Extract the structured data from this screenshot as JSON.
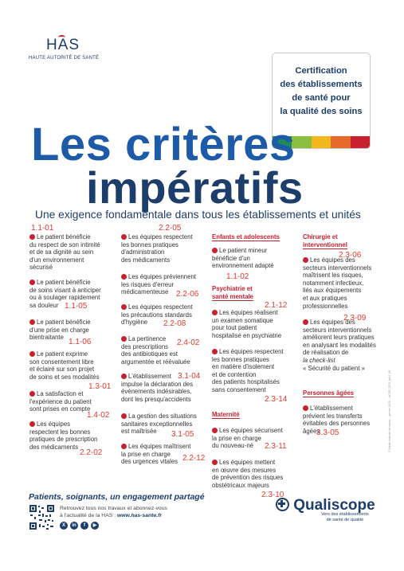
{
  "logo": {
    "name": "HAS",
    "subtitle": "HAUTE AUTORITÉ DE SANTÉ"
  },
  "certification": {
    "lines": [
      "Certification",
      "des établissements",
      "de santé pour",
      "la qualité des soins"
    ],
    "bar_colors": [
      "#1f8a5c",
      "#8bbf3f",
      "#f2b81c",
      "#e86a2a",
      "#c8202f"
    ]
  },
  "title": {
    "line1": "Les critères",
    "line2": "impératifs"
  },
  "subtitle": "Une exigence fondamentale dans tous les établissements et unités",
  "codes": {
    "c1": "1.1-01",
    "c2": "2.2-05",
    "c3": "1.1-02",
    "c4": "2.3-06",
    "c5": "2.2-06",
    "c6": "1.1-05",
    "c7": "2.1-12",
    "c8": "2.2-08",
    "c9": "1.1-06",
    "c10": "2.4-02",
    "c11": "2.3-09",
    "c12": "1.3-01",
    "c13": "3.1-04",
    "c14": "1.4-02",
    "c15": "2.3-14",
    "c16": "3.1-05",
    "c17": "2.2-02",
    "c18": "2.2-12",
    "c19": "3.3-05",
    "c20": "2.3-11",
    "c21": "2.3-10"
  },
  "col1": [
    [
      "Le patient bénéficie",
      "du respect de son intimité",
      "et de sa dignité au sein",
      "d'un environnement",
      "sécurisé"
    ],
    [
      "Le patient bénéficie",
      "de soins visant à anticiper",
      "ou à soulager rapidement",
      "sa douleur"
    ],
    [
      "Le patient bénéficie",
      "d'une prise en charge",
      "bientraitante"
    ],
    [
      "Le patient exprime",
      "son consentement libre",
      "et éclairé sur son projet",
      "de soins et ses modalités"
    ],
    [
      "La satisfaction et",
      "l'expérience du patient",
      "sont prises en compte"
    ],
    [
      "Les équipes",
      "respectent les bonnes",
      "pratiques de prescription",
      "des médicaments"
    ]
  ],
  "col2": [
    [
      "Les équipes respectent",
      "les bonnes pratiques",
      "d'administration",
      "des médicaments"
    ],
    [
      "Les équipes préviennent",
      "les risques d'erreur",
      "médicamenteuse"
    ],
    [
      "Les équipes respectent",
      "les précautions standards",
      "d'hygiène"
    ],
    [
      "La pertinence",
      "des prescriptions",
      "des antibiotiques est",
      "argumentée et réévaluée"
    ],
    [
      "L'établissement",
      "impulse la déclaration des",
      "événements indésirables,",
      "dont les presqu'accidents"
    ],
    [
      "La gestion des situations",
      "sanitaires exceptionnelles",
      "est maîtrisée"
    ],
    [
      "Les équipes maîtrisent",
      "la prise en charge",
      "des urgences vitales"
    ]
  ],
  "col3": {
    "sec1": [
      "Enfants et adolescents"
    ],
    "i1": [
      "Le patient mineur",
      "bénéficie d'un",
      "environnement adapté"
    ],
    "sec2": [
      "Psychiatrie et",
      "santé mentale"
    ],
    "i2": [
      "Les équipes réalisent",
      "un examen somatique",
      "pour tout patient",
      "hospitalisé en psychiatrie"
    ],
    "i3": [
      "Les équipes respectent",
      "les bonnes pratiques",
      "en matière d'isolement",
      "et de contention",
      "des patients hospitalisés",
      "sans consentement"
    ],
    "sec3": [
      "Maternité"
    ],
    "i4": [
      "Les équipes sécurisent",
      "la prise en charge",
      "du nouveau-né"
    ],
    "i5": [
      "Les équipes mettent",
      "en œuvre des mesures",
      "de prévention des risques",
      "obstétricaux majeurs"
    ]
  },
  "col4": {
    "sec1": [
      "Chirurgie et",
      "interventionnel"
    ],
    "i1": [
      "Les équipes des",
      "secteurs interventionnels",
      "maîtrisent les risques,",
      "notamment infectieux,",
      "liés aux équipements",
      "et aux pratiques",
      "professionnelles"
    ],
    "i2a": [
      "Les équipes des",
      "secteurs interventionnels",
      "améliorent leurs pratiques",
      "en analysant les modalités",
      "de réalisation de"
    ],
    "i2b": "la check-list",
    "i2c": "« Sécurité du patient »",
    "sec2": [
      "Personnes âgées"
    ],
    "i3": [
      "L'établissement",
      "prévient les transferts",
      "évitables des personnes",
      "âgées"
    ]
  },
  "footer": {
    "title": "Patients, soignants, un engagement partagé",
    "text1": "Retrouvez tous nos travaux et abonnez-vous",
    "text2": "à l'actualité de la HAS :",
    "website": "www.has-sante.fr",
    "social_icons": [
      "x-icon",
      "linkedin-icon",
      "facebook-icon",
      "youtube-icon"
    ]
  },
  "qualiscope": {
    "name": "Qualiscope",
    "tagline1": "Vers des établissements",
    "tagline2": "de santé de qualité"
  },
  "side_note": "© Haute Autorité de santé – janvier 2025 – ACCR_CES_tp04_05"
}
